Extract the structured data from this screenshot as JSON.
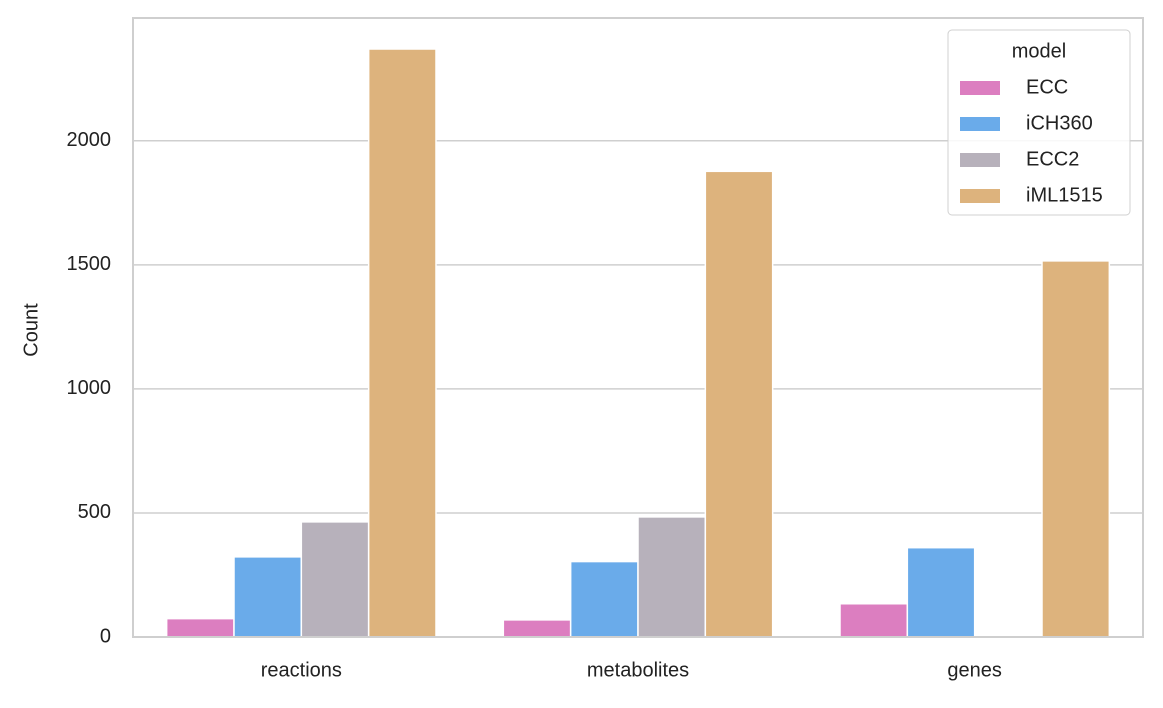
{
  "chart_data": {
    "type": "bar",
    "y_label": "Count",
    "categories": [
      "reactions",
      "metabolites",
      "genes"
    ],
    "series": [
      {
        "name": "ECC",
        "color": "#dc7ec0",
        "values": [
          74,
          69,
          134
        ]
      },
      {
        "name": "iCH360",
        "color": "#6aabea",
        "values": [
          323,
          304,
          360
        ]
      },
      {
        "name": "ECC2",
        "color": "#b7b1bb",
        "values": [
          464,
          484,
          0
        ]
      },
      {
        "name": "iML1515",
        "color": "#ddb37d",
        "values": [
          2370,
          1877,
          1516
        ]
      }
    ],
    "legend_title": "model",
    "legend_position": "upper right",
    "ylim": [
      0,
      2495
    ],
    "yticks": [
      0,
      500,
      1000,
      1500,
      2000
    ],
    "grid": true
  }
}
